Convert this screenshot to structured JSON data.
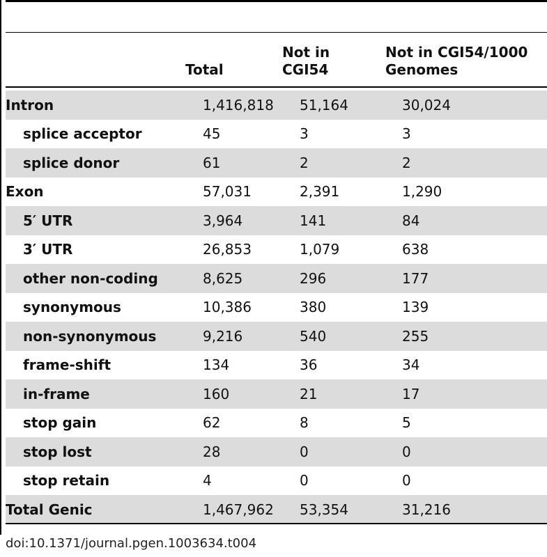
{
  "header": {
    "col_total": "Total",
    "col_not_cgi54": "Not in CGI54",
    "col_not_cgi54_1000g": "Not in CGI54/1000 Genomes"
  },
  "rows": [
    {
      "label": "Intron",
      "total": "1,416,818",
      "not_cgi54": "51,164",
      "not_cgi54_1000g": "30,024",
      "indent": false,
      "shaded": true
    },
    {
      "label": "splice acceptor",
      "total": "45",
      "not_cgi54": "3",
      "not_cgi54_1000g": "3",
      "indent": true,
      "shaded": false
    },
    {
      "label": "splice donor",
      "total": "61",
      "not_cgi54": "2",
      "not_cgi54_1000g": "2",
      "indent": true,
      "shaded": true
    },
    {
      "label": "Exon",
      "total": "57,031",
      "not_cgi54": "2,391",
      "not_cgi54_1000g": "1,290",
      "indent": false,
      "shaded": false
    },
    {
      "label": "5′ UTR",
      "total": "3,964",
      "not_cgi54": "141",
      "not_cgi54_1000g": "84",
      "indent": true,
      "shaded": true
    },
    {
      "label": "3′ UTR",
      "total": "26,853",
      "not_cgi54": "1,079",
      "not_cgi54_1000g": "638",
      "indent": true,
      "shaded": false
    },
    {
      "label": "other non-coding",
      "total": "8,625",
      "not_cgi54": "296",
      "not_cgi54_1000g": "177",
      "indent": true,
      "shaded": true
    },
    {
      "label": "synonymous",
      "total": "10,386",
      "not_cgi54": "380",
      "not_cgi54_1000g": "139",
      "indent": true,
      "shaded": false
    },
    {
      "label": "non-synonymous",
      "total": "9,216",
      "not_cgi54": "540",
      "not_cgi54_1000g": "255",
      "indent": true,
      "shaded": true
    },
    {
      "label": "frame-shift",
      "total": "134",
      "not_cgi54": "36",
      "not_cgi54_1000g": "34",
      "indent": true,
      "shaded": false
    },
    {
      "label": "in-frame",
      "total": "160",
      "not_cgi54": "21",
      "not_cgi54_1000g": "17",
      "indent": true,
      "shaded": true
    },
    {
      "label": "stop gain",
      "total": "62",
      "not_cgi54": "8",
      "not_cgi54_1000g": "5",
      "indent": true,
      "shaded": false
    },
    {
      "label": "stop lost",
      "total": "28",
      "not_cgi54": "0",
      "not_cgi54_1000g": "0",
      "indent": true,
      "shaded": true
    },
    {
      "label": "stop retain",
      "total": "4",
      "not_cgi54": "0",
      "not_cgi54_1000g": "0",
      "indent": true,
      "shaded": false
    },
    {
      "label": "Total Genic",
      "total": "1,467,962",
      "not_cgi54": "53,354",
      "not_cgi54_1000g": "31,216",
      "indent": false,
      "shaded": true
    }
  ],
  "footer": {
    "doi": "doi:10.1371/journal.pgen.1003634.t004"
  }
}
